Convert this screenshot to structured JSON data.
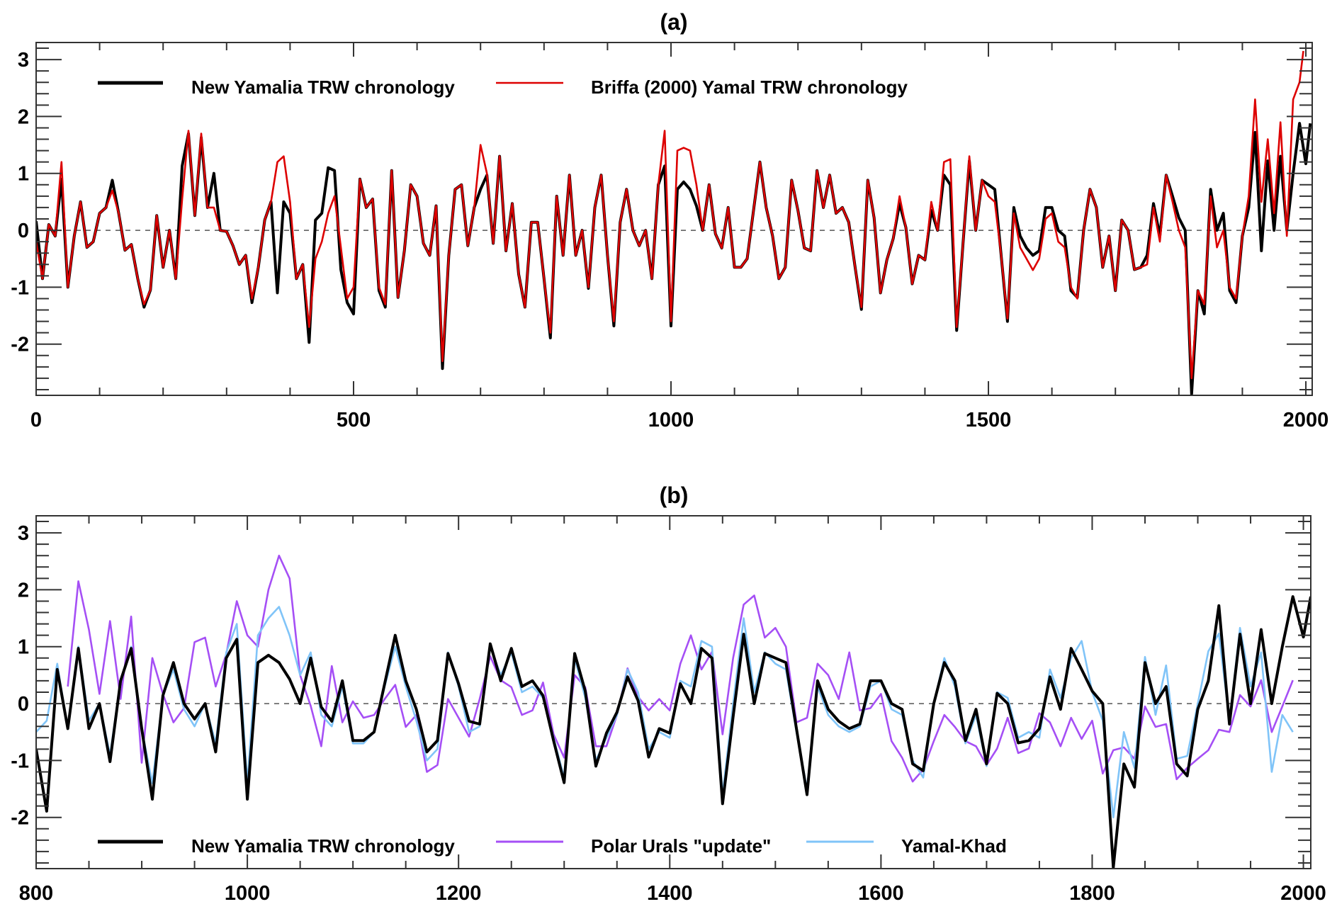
{
  "chart_data": [
    {
      "type": "line",
      "title": "(a)",
      "xlabel": "",
      "ylabel": "",
      "xlim": [
        0,
        2010
      ],
      "ylim": [
        -2.9,
        3.3
      ],
      "x_tick_labels": [
        "0",
        "500",
        "1000",
        "1500",
        "2000"
      ],
      "x_ticks": [
        0,
        500,
        1000,
        1500,
        2000
      ],
      "y_tick_labels": [
        "-2",
        "-1",
        "0",
        "1",
        "2",
        "3"
      ],
      "y_ticks": [
        -2,
        -1,
        0,
        1,
        2,
        3
      ],
      "zero_line": "dashed",
      "legend_placement": "top-left",
      "series": [
        {
          "name": "New Yamalia TRW chronology",
          "color": "#000000",
          "x_start": 0,
          "x_step": 10,
          "x_end": 2007,
          "values": [
            0.16,
            -0.85,
            0.1,
            -0.1,
            0.9,
            -1.0,
            -0.1,
            0.5,
            -0.3,
            -0.2,
            0.3,
            0.4,
            0.88,
            0.3,
            -0.35,
            -0.25,
            -0.85,
            -1.35,
            -1.05,
            0.26,
            -0.65,
            0,
            -0.85,
            1.13,
            1.7,
            0.26,
            1.63,
            0.4,
            1.0,
            0,
            -0.02,
            -0.27,
            -0.6,
            -0.44,
            -1.27,
            -0.65,
            0.18,
            0.5,
            -1.1,
            0.5,
            0.3,
            -0.85,
            -0.6,
            -1.97,
            0.18,
            0.3,
            1.1,
            1.05,
            -0.69,
            -1.27,
            -1.47,
            0.9,
            0.4,
            0.55,
            -1.06,
            -1.35,
            1.05,
            -1.18,
            -0.36,
            0.8,
            0.6,
            -0.23,
            -0.44,
            0.43,
            -2.43,
            -0.44,
            0.72,
            0.8,
            -0.27,
            0.4,
            0.72,
            0.97,
            -0.23,
            1.3,
            -0.36,
            0.47,
            -0.77,
            -1.35,
            0.14,
            0.14,
            -0.85,
            -1.89,
            0.6,
            -0.44,
            0.97,
            -0.44,
            0,
            -1.02,
            0.4,
            0.97,
            -0.44,
            -1.68,
            0.14,
            0.72,
            0,
            -0.27,
            0,
            -0.85,
            0.8,
            1.13,
            -1.68,
            0.72,
            0.85,
            0.72,
            0.43,
            0,
            0.8,
            -0.06,
            -0.31,
            0.4,
            -0.65,
            -0.65,
            -0.5,
            0.35,
            1.2,
            0.4,
            -0.1,
            -0.85,
            -0.65,
            0.88,
            0.35,
            -0.31,
            -0.36,
            1.05,
            0.4,
            0.97,
            0.3,
            0.4,
            0.14,
            -0.65,
            -1.39,
            0.88,
            0.22,
            -1.1,
            -0.52,
            -0.15,
            0.47,
            0.05,
            -0.94,
            -0.44,
            -0.52,
            0.35,
            0,
            0.97,
            0.8,
            -1.76,
            -0.23,
            1.22,
            0,
            0.88,
            0.8,
            0.72,
            -0.44,
            -1.6,
            0.4,
            -0.1,
            -0.31,
            -0.44,
            -0.36,
            0.4,
            0.4,
            0,
            -0.1,
            -1.06,
            -1.18,
            0,
            0.72,
            0.4,
            -0.65,
            -0.1,
            -1.06,
            0.18,
            0,
            -0.69,
            -0.65,
            -0.44,
            0.47,
            -0.1,
            0.97,
            0.6,
            0.22,
            0,
            -2.88,
            -1.06,
            -1.47,
            0.72,
            0,
            0.3,
            -1.06,
            -1.27,
            -0.1,
            0.4,
            1.72,
            -0.36,
            1.22,
            0,
            1.3,
            0,
            1.0,
            1.88,
            1.17,
            1.88
          ]
        },
        {
          "name": "Briffa (2000) Yamal TRW chronology",
          "color": "#dd0000",
          "x_start": 0,
          "x_step": 10,
          "x_end": 1996,
          "values": [
            -0.2,
            -0.85,
            0.1,
            -0.1,
            1.2,
            -1.0,
            -0.1,
            0.5,
            -0.3,
            -0.2,
            0.3,
            0.4,
            0.7,
            0.3,
            -0.35,
            -0.25,
            -0.85,
            -1.3,
            -1.05,
            0.26,
            -0.65,
            0,
            -0.85,
            0.55,
            1.75,
            0.26,
            1.7,
            0.4,
            0.4,
            0,
            -0.02,
            -0.27,
            -0.6,
            -0.44,
            -1.2,
            -0.65,
            0.18,
            0.5,
            1.2,
            1.3,
            0.5,
            -0.85,
            -0.6,
            -1.7,
            -0.5,
            -0.2,
            0.3,
            0.6,
            -0.3,
            -1.2,
            -1.0,
            0.9,
            0.4,
            0.55,
            -1.0,
            -1.3,
            1.05,
            -1.18,
            -0.36,
            0.8,
            0.6,
            -0.23,
            -0.44,
            0.43,
            -2.3,
            -0.44,
            0.72,
            0.8,
            -0.27,
            0.4,
            1.5,
            1.0,
            -0.23,
            1.3,
            -0.36,
            0.47,
            -0.77,
            -1.35,
            0.14,
            0.14,
            -0.85,
            -1.8,
            0.6,
            -0.44,
            0.97,
            -0.44,
            0,
            -1.0,
            0.4,
            0.97,
            -0.44,
            -1.6,
            0.14,
            0.72,
            0,
            -0.27,
            0,
            -0.85,
            0.8,
            1.75,
            -1.6,
            1.4,
            1.45,
            1.4,
            0.8,
            0,
            0.8,
            -0.06,
            -0.31,
            0.4,
            -0.65,
            -0.65,
            -0.5,
            0.35,
            1.2,
            0.4,
            -0.1,
            -0.85,
            -0.65,
            0.88,
            0.35,
            -0.31,
            -0.36,
            1.05,
            0.4,
            0.97,
            0.3,
            0.4,
            0.14,
            -0.65,
            -1.35,
            0.88,
            0.22,
            -1.1,
            -0.52,
            -0.15,
            0.6,
            0.05,
            -0.94,
            -0.44,
            -0.52,
            0.5,
            0,
            1.2,
            1.25,
            -1.7,
            -0.23,
            1.3,
            0,
            0.88,
            0.6,
            0.5,
            -0.44,
            -1.55,
            0.3,
            -0.3,
            -0.5,
            -0.7,
            -0.5,
            0.2,
            0.3,
            -0.2,
            -0.3,
            -1.0,
            -1.2,
            0,
            0.72,
            0.4,
            -0.65,
            -0.1,
            -1.06,
            0.18,
            0,
            -0.69,
            -0.65,
            -0.6,
            0.4,
            -0.2,
            0.97,
            0.5,
            0,
            -0.3,
            -2.6,
            -1.06,
            -1.3,
            0.6,
            -0.3,
            0,
            -1.0,
            -1.2,
            -0.1,
            0.6,
            2.3,
            0.5,
            1.6,
            0.3,
            1.9,
            -0.1,
            2.3,
            2.6,
            3.15
          ]
        }
      ]
    },
    {
      "type": "line",
      "title": "(b)",
      "xlabel": "",
      "ylabel": "",
      "xlim": [
        800,
        2007
      ],
      "ylim": [
        -2.9,
        3.3
      ],
      "x_tick_labels": [
        "800",
        "1000",
        "1200",
        "1400",
        "1600",
        "1800",
        "2000"
      ],
      "x_ticks": [
        800,
        1000,
        1200,
        1400,
        1600,
        1800,
        2000
      ],
      "y_tick_labels": [
        "-2",
        "-1",
        "0",
        "1",
        "2",
        "3"
      ],
      "y_ticks": [
        -2,
        -1,
        0,
        1,
        2,
        3
      ],
      "zero_line": "dashed",
      "legend_placement": "bottom-left",
      "series": [
        {
          "name": "Polar Urals \"update\"",
          "color": "#a54ff5",
          "x_start": 830,
          "x_step": 10,
          "x_end": 1990,
          "values": [
            0.3,
            2.15,
            1.3,
            0.17,
            1.45,
            0.08,
            1.53,
            -1.04,
            0.8,
            0.17,
            -0.33,
            -0.08,
            1.08,
            1.16,
            0.3,
            0.87,
            1.8,
            1.2,
            1.0,
            2.0,
            2.6,
            2.2,
            0.5,
            -0.04,
            -0.75,
            0.66,
            -0.33,
            0.04,
            -0.25,
            -0.2,
            0.08,
            0.33,
            -0.41,
            -0.2,
            -1.2,
            -1.08,
            0.08,
            -0.25,
            -0.58,
            0.08,
            0.83,
            0.41,
            0.29,
            -0.2,
            -0.12,
            0.37,
            -0.54,
            -0.95,
            0.5,
            0.29,
            -0.75,
            -0.75,
            -0.2,
            0.62,
            0.12,
            -0.12,
            0.08,
            -0.12,
            0.7,
            1.2,
            0.6,
            0.91,
            -0.54,
            0.8,
            1.74,
            1.9,
            1.16,
            1.33,
            1.0,
            -0.33,
            -0.25,
            0.7,
            0.5,
            0.08,
            0.9,
            -0.12,
            -0.08,
            0.17,
            -0.66,
            -0.95,
            -1.37,
            -1.16,
            -0.66,
            -0.2,
            -0.41,
            -0.66,
            -0.75,
            -1.08,
            -0.79,
            -0.25,
            -0.87,
            -0.79,
            -0.17,
            -0.33,
            -0.75,
            -0.25,
            -0.62,
            -0.3,
            -1.23,
            -0.82,
            -0.77,
            -0.97,
            -0.05,
            -0.41,
            -0.36,
            -1.33,
            -1.13,
            -0.97,
            -0.82,
            -0.46,
            -0.5,
            0.15,
            -0.05,
            0.41,
            -0.5,
            -0.05,
            0.41
          ]
        },
        {
          "name": "Yamal-Khad",
          "color": "#80c4f8",
          "x_start": 800,
          "x_step": 10,
          "x_end": 1990,
          "values": [
            -0.5,
            -0.3,
            0.7,
            -0.44,
            1.0,
            -0.3,
            0,
            -0.9,
            0.4,
            1.0,
            -0.44,
            -1.4,
            0.14,
            0.6,
            -0.1,
            -0.4,
            0,
            -0.7,
            0.9,
            1.4,
            -1.4,
            1.2,
            1.5,
            1.7,
            1.2,
            0.5,
            0.9,
            -0.2,
            -0.4,
            0.3,
            -0.7,
            -0.7,
            -0.5,
            0.3,
            1.0,
            0.3,
            -0.3,
            -1.0,
            -0.8,
            0.9,
            0.3,
            -0.5,
            -0.4,
            1.0,
            0.5,
            0.9,
            0.2,
            0.3,
            0.1,
            -0.6,
            -1.3,
            0.8,
            0.1,
            -1.0,
            -0.6,
            -0.2,
            0.6,
            0.2,
            -0.8,
            -0.5,
            -0.6,
            0.4,
            0.3,
            1.1,
            1.0,
            -1.6,
            0,
            1.5,
            0.2,
            0.9,
            0.7,
            0.6,
            -0.5,
            -1.5,
            0.3,
            -0.2,
            -0.4,
            -0.5,
            -0.4,
            0.3,
            0.4,
            -0.1,
            -0.2,
            -1.0,
            -1.3,
            0,
            0.8,
            0.3,
            -0.7,
            -0.2,
            -1.1,
            0.2,
            0.1,
            -0.6,
            -0.5,
            -0.6,
            0.6,
            0.1,
            0.8,
            1.1,
            0.2,
            -0.3,
            -2.0,
            -0.5,
            -1.13,
            0.82,
            -0.2,
            0.67,
            -0.97,
            -0.92,
            0,
            0.92,
            1.23,
            -0.3,
            1.33,
            0.3,
            0.9,
            -1.2,
            -0.2,
            -0.5
          ]
        },
        {
          "name": "New Yamalia TRW chronology",
          "color": "#000000",
          "x_start": 800,
          "x_step": 10,
          "x_end": 2007,
          "values": [
            -0.8,
            -1.89,
            0.6,
            -0.44,
            0.97,
            -0.44,
            0,
            -1.02,
            0.4,
            0.97,
            -0.44,
            -1.68,
            0.14,
            0.72,
            0,
            -0.27,
            0,
            -0.85,
            0.8,
            1.13,
            -1.68,
            0.72,
            0.85,
            0.72,
            0.43,
            0,
            0.8,
            -0.06,
            -0.31,
            0.4,
            -0.65,
            -0.65,
            -0.5,
            0.35,
            1.2,
            0.4,
            -0.1,
            -0.85,
            -0.65,
            0.88,
            0.35,
            -0.31,
            -0.36,
            1.05,
            0.4,
            0.97,
            0.3,
            0.4,
            0.14,
            -0.65,
            -1.39,
            0.88,
            0.22,
            -1.1,
            -0.52,
            -0.15,
            0.47,
            0.05,
            -0.94,
            -0.44,
            -0.52,
            0.35,
            0,
            0.97,
            0.8,
            -1.76,
            -0.23,
            1.22,
            0,
            0.88,
            0.8,
            0.72,
            -0.44,
            -1.6,
            0.4,
            -0.1,
            -0.31,
            -0.44,
            -0.36,
            0.4,
            0.4,
            0,
            -0.1,
            -1.06,
            -1.18,
            0,
            0.72,
            0.4,
            -0.65,
            -0.1,
            -1.06,
            0.18,
            0,
            -0.69,
            -0.65,
            -0.44,
            0.47,
            -0.1,
            0.97,
            0.6,
            0.22,
            0,
            -2.88,
            -1.06,
            -1.47,
            0.72,
            0,
            0.3,
            -1.06,
            -1.27,
            -0.1,
            0.4,
            1.72,
            -0.36,
            1.22,
            0,
            1.3,
            0,
            1.0,
            1.88,
            1.17,
            1.88
          ]
        }
      ]
    }
  ],
  "legends": [
    [
      {
        "label": "New Yamalia TRW chronology",
        "color": "#000000"
      },
      {
        "label": "Briffa (2000) Yamal TRW chronology",
        "color": "#dd0000"
      }
    ],
    [
      {
        "label": "New Yamalia TRW chronology",
        "color": "#000000"
      },
      {
        "label": "Polar Urals \"update\"",
        "color": "#a54ff5"
      },
      {
        "label": "Yamal-Khad",
        "color": "#80c4f8"
      }
    ]
  ]
}
